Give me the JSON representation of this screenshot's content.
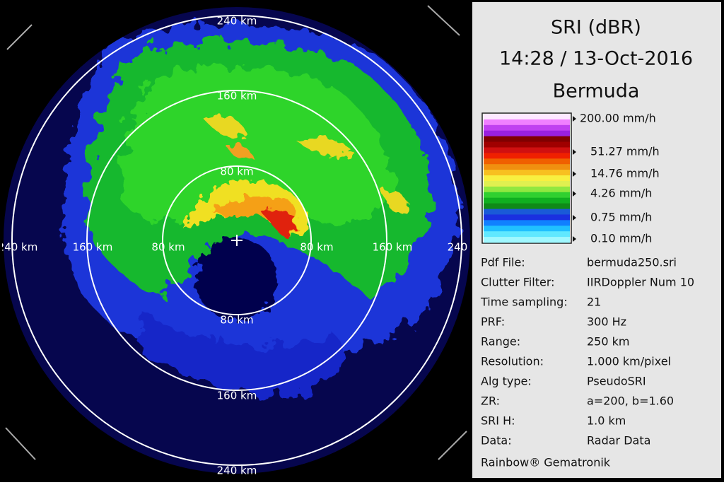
{
  "header": {
    "product": "SRI (dBR)",
    "time": "14:28 / 13-Oct-2016",
    "site": "Bermuda"
  },
  "range_rings": {
    "labels": [
      "80 km",
      "160 km",
      "240 km"
    ]
  },
  "legend": {
    "labels": [
      "200.00 mm/h",
      "51.27 mm/h",
      "14.76 mm/h",
      "4.26 mm/h",
      "0.75 mm/h",
      "0.10 mm/h"
    ]
  },
  "info": {
    "rows": [
      [
        "Pdf File:",
        "bermuda250.sri"
      ],
      [
        "Clutter Filter:",
        "IIRDoppler Num 10"
      ],
      [
        "Time sampling:",
        "21"
      ],
      [
        "PRF:",
        "300 Hz"
      ],
      [
        "Range:",
        "250 km"
      ],
      [
        "Resolution:",
        "1.000 km/pixel"
      ],
      [
        "Alg type:",
        "PseudoSRI"
      ],
      [
        "ZR:",
        "a=200, b=1.60"
      ],
      [
        "SRI H:",
        "1.0 km"
      ],
      [
        "Data:",
        "Radar Data"
      ]
    ]
  },
  "footer": "Rainbow® Gematronik"
}
